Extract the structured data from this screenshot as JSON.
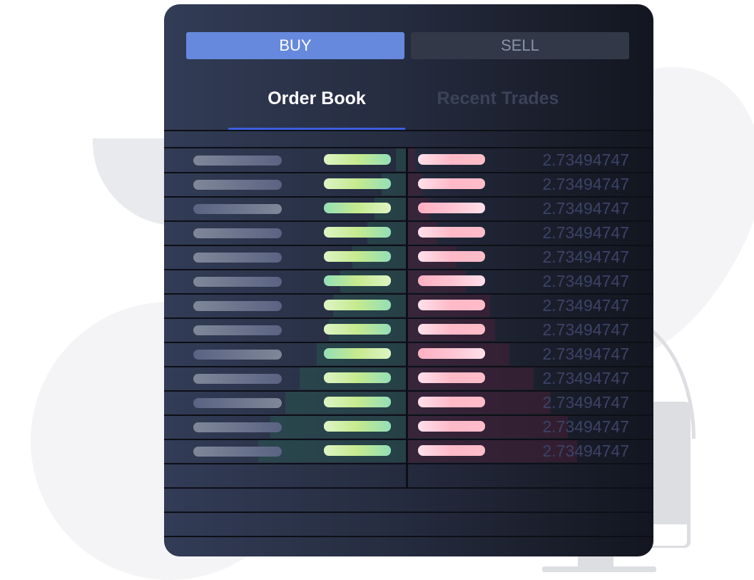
{
  "order_panel": {
    "buy_label": "BUY",
    "sell_label": "SELL",
    "active_side": "buy",
    "tabs": [
      {
        "label": "Order Book",
        "active": true
      },
      {
        "label": "Recent Trades",
        "active": false
      }
    ],
    "rows": [
      {
        "price": "2.73494747",
        "bid_depth": 0.04,
        "ask_depth": 0.03
      },
      {
        "price": "2.73494747",
        "bid_depth": 0.1,
        "ask_depth": 0.06
      },
      {
        "price": "2.73494747",
        "bid_depth": 0.13,
        "ask_depth": 0.09
      },
      {
        "price": "2.73494747",
        "bid_depth": 0.16,
        "ask_depth": 0.12
      },
      {
        "price": "2.73494747",
        "bid_depth": 0.22,
        "ask_depth": 0.2
      },
      {
        "price": "2.73494747",
        "bid_depth": 0.27,
        "ask_depth": 0.24
      },
      {
        "price": "2.73494747",
        "bid_depth": 0.3,
        "ask_depth": 0.34
      },
      {
        "price": "2.73494747",
        "bid_depth": 0.32,
        "ask_depth": 0.36
      },
      {
        "price": "2.73494747",
        "bid_depth": 0.37,
        "ask_depth": 0.42
      },
      {
        "price": "2.73494747",
        "bid_depth": 0.44,
        "ask_depth": 0.52
      },
      {
        "price": "2.73494747",
        "bid_depth": 0.5,
        "ask_depth": 0.59
      },
      {
        "price": "2.73494747",
        "bid_depth": 0.56,
        "ask_depth": 0.66
      },
      {
        "price": "2.73494747",
        "bid_depth": 0.61,
        "ask_depth": 0.7
      }
    ]
  },
  "colors": {
    "buy_accent": "#6689dd",
    "tab_underline": "#3d5ee0",
    "bid_bar": "#c6ea8e",
    "ask_bar": "#ffb9c8",
    "price_text": "#3c4367"
  }
}
